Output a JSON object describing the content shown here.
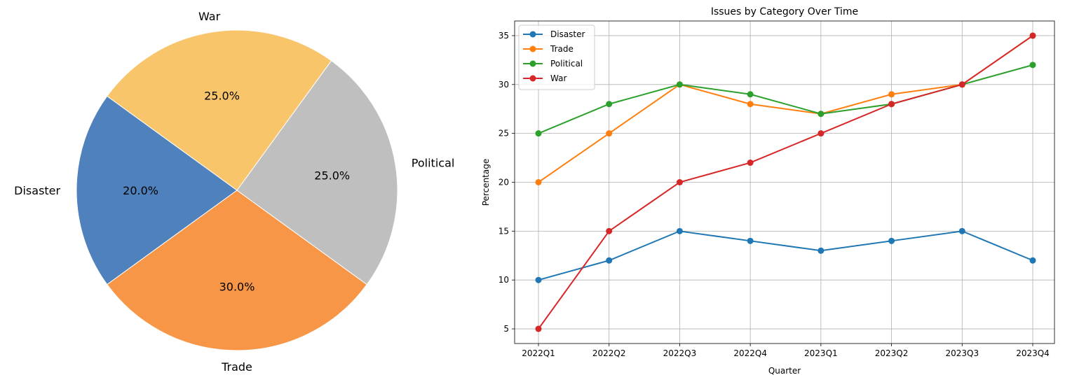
{
  "chart_data": [
    {
      "type": "pie",
      "title": "",
      "labels": [
        "Disaster",
        "Trade",
        "Political",
        "War"
      ],
      "values": [
        20.0,
        30.0,
        25.0,
        25.0
      ],
      "percent_labels": [
        "20.0%",
        "30.0%",
        "25.0%",
        "25.0%"
      ],
      "colors": [
        "#4f81bd",
        "#f79646",
        "#bfbfbf",
        "#f8c56b"
      ],
      "start_angle_deg": 144,
      "direction": "counterclockwise"
    },
    {
      "type": "line",
      "title": "Issues by Category Over Time",
      "xlabel": "Quarter",
      "ylabel": "Percentage",
      "categories": [
        "2022Q1",
        "2022Q2",
        "2022Q3",
        "2022Q4",
        "2023Q1",
        "2023Q2",
        "2023Q3",
        "2023Q4"
      ],
      "ylim": [
        3.5,
        36.5
      ],
      "yticks": [
        5,
        10,
        15,
        20,
        25,
        30,
        35
      ],
      "grid": true,
      "legend": "upper-left",
      "series": [
        {
          "name": "Disaster",
          "color": "#1f77b4",
          "values": [
            10,
            12,
            15,
            14,
            13,
            14,
            15,
            12
          ]
        },
        {
          "name": "Trade",
          "color": "#ff7f0e",
          "values": [
            20,
            25,
            30,
            28,
            27,
            29,
            30,
            35
          ]
        },
        {
          "name": "Political",
          "color": "#2ca02c",
          "values": [
            25,
            28,
            30,
            29,
            27,
            28,
            30,
            32
          ]
        },
        {
          "name": "War",
          "color": "#d62728",
          "values": [
            5,
            15,
            20,
            22,
            25,
            28,
            30,
            35
          ]
        }
      ]
    }
  ]
}
